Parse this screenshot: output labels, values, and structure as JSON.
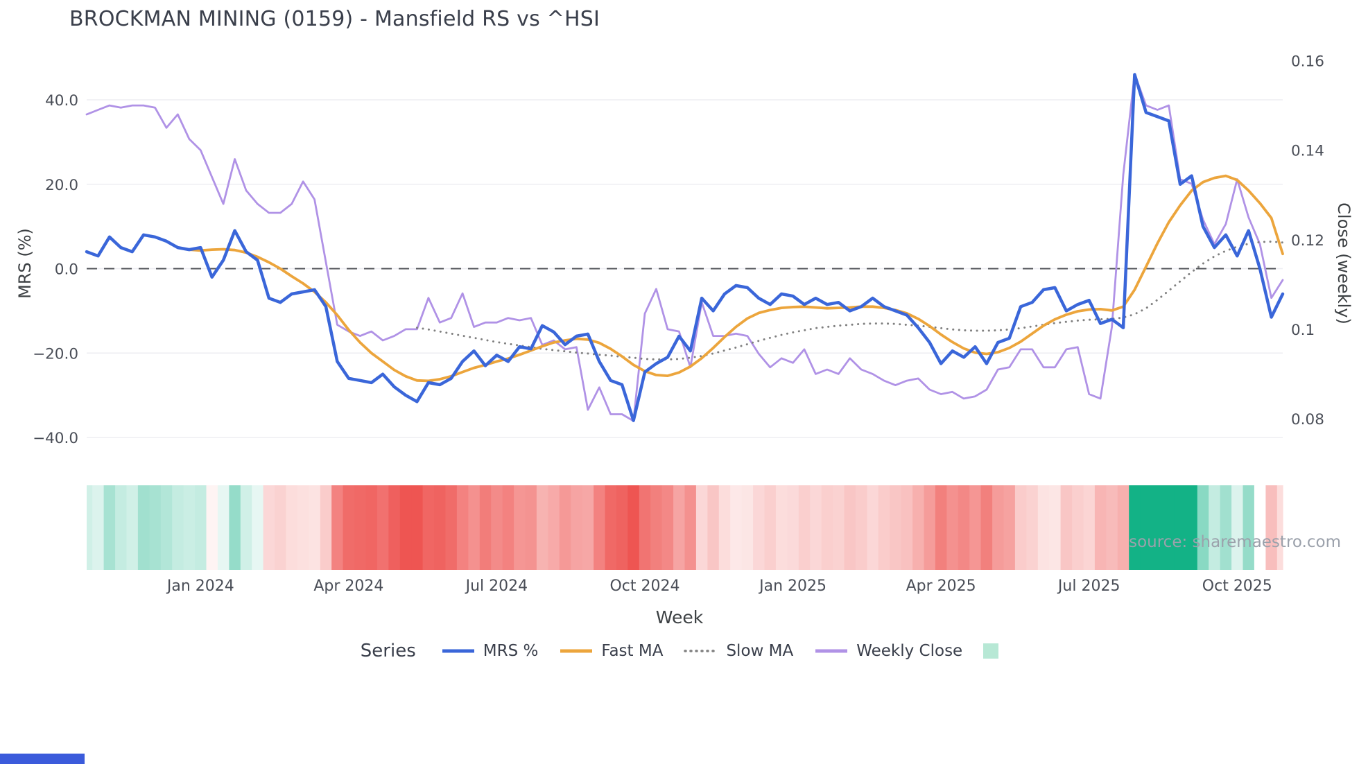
{
  "source_note": "source: sharemaestro.com",
  "legend": {
    "title": "Series",
    "heat_swatch_color": "#b7e8d5"
  },
  "decor": {
    "bottom_bar_color": "#3b5bdb"
  },
  "chart_data": {
    "type": "line",
    "title": "BROCKMAN MINING (0159) - Mansfield RS vs ^HSI",
    "xlabel": "Week",
    "ylabel_left": "MRS (%)",
    "ylabel_right": "Close (weekly)",
    "n_points": 106,
    "axis_left": {
      "range": [
        -44.8,
        49.2
      ],
      "ticks": [
        {
          "value": 40,
          "label": "40.0"
        },
        {
          "value": 20,
          "label": "20.0"
        },
        {
          "value": 0,
          "label": "0.0"
        },
        {
          "value": -20,
          "label": "−20.0"
        },
        {
          "value": -40,
          "label": "−40.0"
        }
      ]
    },
    "axis_right": {
      "range": [
        0.071,
        0.16
      ],
      "ticks": [
        {
          "value": 0.16,
          "label": "0.16"
        },
        {
          "value": 0.14,
          "label": "0.14"
        },
        {
          "value": 0.12,
          "label": "0.12"
        },
        {
          "value": 0.1,
          "label": "0.1"
        },
        {
          "value": 0.08,
          "label": "0.08"
        }
      ]
    },
    "x_ticks": [
      {
        "index": 10,
        "label": "Jan 2024"
      },
      {
        "index": 23,
        "label": "Apr 2024"
      },
      {
        "index": 36,
        "label": "Jul 2024"
      },
      {
        "index": 49,
        "label": "Oct 2024"
      },
      {
        "index": 62,
        "label": "Jan 2025"
      },
      {
        "index": 75,
        "label": "Apr 2025"
      },
      {
        "index": 88,
        "label": "Jul 2025"
      },
      {
        "index": 101,
        "label": "Oct 2025"
      }
    ],
    "zero_line": {
      "axis": "left",
      "value": 0
    },
    "heatmap": {
      "source_series": "MRS %",
      "green": "#13b286",
      "red": "#ee5552",
      "green_max": 20,
      "red_max": 30
    },
    "series": [
      {
        "name": "MRS %",
        "axis": "left",
        "color": "#3a66d9",
        "width": 4.5,
        "dash": null,
        "values": [
          4,
          3,
          7.5,
          5,
          4,
          8,
          7.5,
          6.5,
          5,
          4.5,
          5,
          -2,
          2,
          9,
          4,
          2,
          -7,
          -8,
          -6,
          -5.5,
          -5,
          -9,
          -22,
          -26,
          -26.5,
          -27,
          -25,
          -28,
          -30,
          -31.5,
          -27,
          -27.5,
          -26,
          -22,
          -19.5,
          -23,
          -20.5,
          -22,
          -18.5,
          -19,
          -13.5,
          -15,
          -18,
          -16,
          -15.5,
          -22,
          -26.5,
          -27.5,
          -36,
          -24.5,
          -22.5,
          -21,
          -16,
          -19.5,
          -7,
          -10,
          -6,
          -4,
          -4.5,
          -7,
          -8.5,
          -6,
          -6.5,
          -8.5,
          -7,
          -8.5,
          -8,
          -10,
          -9,
          -7,
          -9,
          -10,
          -11,
          -14,
          -17.5,
          -22.5,
          -19.5,
          -21,
          -18.5,
          -22.5,
          -17.5,
          -16.5,
          -9,
          -8,
          -5,
          -4.5,
          -10,
          -8.5,
          -7.5,
          -13,
          -12,
          -14,
          46,
          37,
          36,
          35,
          20,
          22,
          10,
          5,
          8,
          3,
          9,
          0,
          -11.5,
          -6
        ]
      },
      {
        "name": "Fast MA",
        "axis": "left",
        "color": "#eca53c",
        "width": 3.8,
        "dash": null,
        "values": [
          null,
          null,
          null,
          null,
          null,
          null,
          null,
          null,
          null,
          4.5,
          4.3,
          4.5,
          4.6,
          4.4,
          3.8,
          2.8,
          1.5,
          0,
          -1.8,
          -3.5,
          -5.5,
          -8,
          -11,
          -14.5,
          -17.5,
          -20,
          -22,
          -24,
          -25.5,
          -26.5,
          -26.6,
          -26.2,
          -25.5,
          -24.5,
          -23.5,
          -22.8,
          -22,
          -21.3,
          -20.4,
          -19.4,
          -18.4,
          -17.5,
          -17,
          -16.6,
          -16.8,
          -17.6,
          -19,
          -20.8,
          -22.8,
          -24.3,
          -25.2,
          -25.4,
          -24.6,
          -23.2,
          -21.2,
          -18.8,
          -16.2,
          -13.8,
          -11.8,
          -10.5,
          -9.8,
          -9.3,
          -9.1,
          -9,
          -9.2,
          -9.4,
          -9.3,
          -9.2,
          -9,
          -9,
          -9.3,
          -9.8,
          -10.6,
          -11.9,
          -13.6,
          -15.6,
          -17.4,
          -18.9,
          -19.9,
          -20.2,
          -19.8,
          -18.8,
          -17.3,
          -15.4,
          -13.5,
          -12,
          -10.9,
          -10.1,
          -9.7,
          -9.6,
          -9.9,
          -9,
          -5,
          0.5,
          6,
          11,
          15,
          18.5,
          20.5,
          21.5,
          22,
          21,
          18.5,
          15.5,
          12,
          3.5
        ]
      },
      {
        "name": "Slow MA",
        "axis": "left",
        "color": "#808080",
        "width": 3,
        "dash": "0.1 8.5",
        "values": [
          null,
          null,
          null,
          null,
          null,
          null,
          null,
          null,
          null,
          null,
          null,
          null,
          null,
          null,
          null,
          null,
          null,
          null,
          null,
          null,
          null,
          null,
          null,
          null,
          null,
          null,
          null,
          null,
          null,
          -14,
          -14.4,
          -14.9,
          -15.4,
          -15.9,
          -16.4,
          -16.9,
          -17.4,
          -17.8,
          -18.2,
          -18.6,
          -19,
          -19.3,
          -19.6,
          -19.9,
          -20.1,
          -20.4,
          -20.6,
          -20.9,
          -21.1,
          -21.4,
          -21.5,
          -21.5,
          -21.4,
          -21.1,
          -20.7,
          -20.1,
          -19.4,
          -18.7,
          -17.9,
          -17.1,
          -16.4,
          -15.7,
          -15.1,
          -14.6,
          -14.1,
          -13.8,
          -13.5,
          -13.3,
          -13.1,
          -13,
          -13,
          -13.1,
          -13.3,
          -13.5,
          -13.8,
          -14.1,
          -14.4,
          -14.6,
          -14.7,
          -14.7,
          -14.6,
          -14.4,
          -14.1,
          -13.7,
          -13.3,
          -12.9,
          -12.6,
          -12.3,
          -12.1,
          -12,
          -11.9,
          -11.6,
          -10.8,
          -9.4,
          -7.4,
          -5.2,
          -3,
          -0.8,
          1.2,
          2.9,
          4.2,
          5.2,
          5.9,
          6.3,
          6.4,
          6.2
        ]
      },
      {
        "name": "Weekly Close",
        "axis": "right",
        "color": "#b092e6",
        "width": 2.8,
        "dash": null,
        "values": [
          0.148,
          0.149,
          0.15,
          0.1495,
          0.15,
          0.15,
          0.1495,
          0.145,
          0.148,
          0.1425,
          0.14,
          0.134,
          0.128,
          0.138,
          0.131,
          0.128,
          0.126,
          0.126,
          0.128,
          0.133,
          0.129,
          0.115,
          0.101,
          0.0995,
          0.0985,
          0.0995,
          0.0975,
          0.0985,
          0.1,
          0.1,
          0.107,
          0.1015,
          0.1025,
          0.108,
          0.1005,
          0.1015,
          0.1015,
          0.1025,
          0.102,
          0.1025,
          0.0965,
          0.0975,
          0.0955,
          0.096,
          0.082,
          0.087,
          0.081,
          0.081,
          0.0795,
          0.1035,
          0.109,
          0.1,
          0.0995,
          0.0915,
          0.106,
          0.0985,
          0.0985,
          0.099,
          0.0985,
          0.0945,
          0.0915,
          0.0935,
          0.0925,
          0.0955,
          0.09,
          0.091,
          0.09,
          0.0935,
          0.091,
          0.09,
          0.0885,
          0.0875,
          0.0885,
          0.089,
          0.0865,
          0.0855,
          0.086,
          0.0845,
          0.085,
          0.0865,
          0.091,
          0.0915,
          0.0955,
          0.0955,
          0.0915,
          0.0915,
          0.0955,
          0.096,
          0.0855,
          0.0845,
          0.1005,
          0.1345,
          0.157,
          0.15,
          0.149,
          0.15,
          0.1335,
          0.1325,
          0.1245,
          0.119,
          0.1235,
          0.1335,
          0.125,
          0.119,
          0.107,
          0.111
        ]
      }
    ]
  }
}
